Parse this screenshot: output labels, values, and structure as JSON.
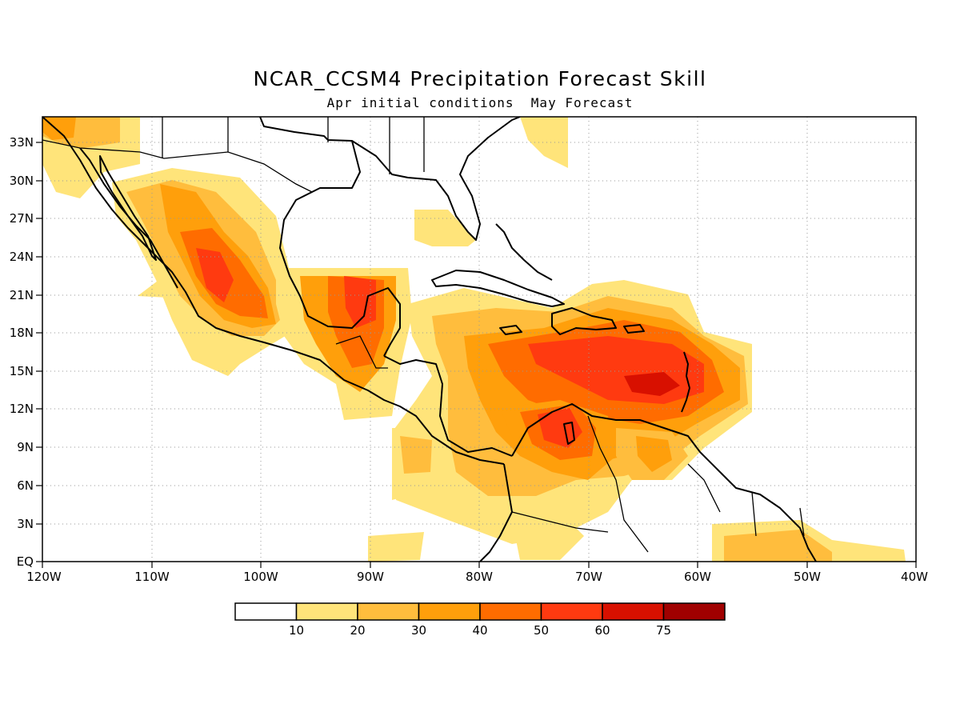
{
  "map": {
    "title": "NCAR_CCSM4 Precipitation Forecast Skill",
    "subtitle": "Apr initial conditions  May Forecast",
    "lat_labels": [
      "EQ",
      "3N",
      "6N",
      "9N",
      "12N",
      "15N",
      "18N",
      "21N",
      "24N",
      "27N",
      "30N",
      "33N"
    ],
    "lon_labels": [
      "120W",
      "110W",
      "100W",
      "90W",
      "80W",
      "70W",
      "60W",
      "50W",
      "40W"
    ],
    "lat_range": [
      0,
      35
    ],
    "lon_range": [
      -120,
      -40
    ],
    "grid": "dotted",
    "colorbar": {
      "levels": [
        "10",
        "20",
        "30",
        "40",
        "50",
        "60",
        "75"
      ],
      "colors": [
        "#ffffff",
        "#ffe47a",
        "#ffbd3d",
        "#ff9f0b",
        "#ff6c00",
        "#ff3a10",
        "#d81000",
        "#a00000"
      ]
    }
  }
}
